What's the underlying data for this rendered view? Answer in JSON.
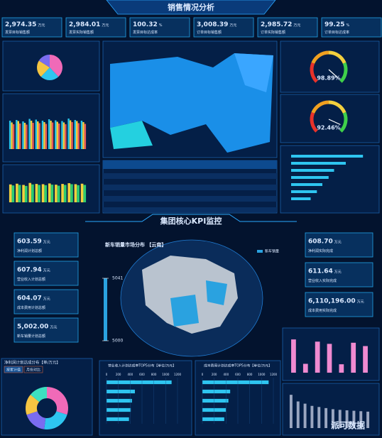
{
  "header": {
    "title": "销售情况分析"
  },
  "kpis": [
    {
      "value": "2,974.35",
      "unit": "万元",
      "label": "发票目标销售额"
    },
    {
      "value": "2,984.01",
      "unit": "万元",
      "label": "发票实际销售额"
    },
    {
      "value": "100.32",
      "unit": "%",
      "label": "发票目标达成率"
    },
    {
      "value": "3,008.39",
      "unit": "万元",
      "label": "订单目标销售额"
    },
    {
      "value": "2,985.72",
      "unit": "万元",
      "label": "订单实际销售额"
    },
    {
      "value": "99.25",
      "unit": "%",
      "label": "订单目标达成率"
    }
  ],
  "gauges": [
    {
      "value": 98.89,
      "label": "98.89%"
    },
    {
      "value": 92.46,
      "label": "92.46%"
    }
  ],
  "pie": {
    "type": "pie",
    "values": [
      38,
      24,
      22,
      16
    ],
    "colors": [
      "#f06ab8",
      "#2ec5f0",
      "#f5c542",
      "#7a6cf0"
    ]
  },
  "bars": {
    "type": "bar",
    "ylim": [
      0,
      100
    ],
    "series": [
      {
        "color": "#27c4e8",
        "values": [
          80,
          82,
          78,
          85,
          83,
          80,
          84,
          81,
          79,
          86,
          82,
          80
        ]
      },
      {
        "color": "#f3d03e",
        "values": [
          75,
          79,
          74,
          80,
          78,
          76,
          80,
          77,
          75,
          81,
          79,
          76
        ]
      },
      {
        "color": "#e85a5a",
        "values": [
          70,
          72,
          69,
          74,
          73,
          71,
          75,
          72,
          70,
          76,
          73,
          71
        ]
      }
    ]
  },
  "bars2": {
    "type": "bar",
    "ylim": [
      0,
      100
    ],
    "series": [
      {
        "color": "#f3d03e",
        "values": [
          72,
          75,
          70,
          78,
          74,
          73,
          76,
          71,
          74,
          77,
          73,
          75
        ]
      },
      {
        "color": "#2ecc71",
        "values": [
          68,
          70,
          66,
          72,
          70,
          69,
          71,
          67,
          70,
          73,
          69,
          70
        ]
      }
    ]
  },
  "hbar_right": {
    "type": "hbar",
    "xlim": [
      0,
      100
    ],
    "color": "#2ec5f0",
    "values": [
      92,
      70,
      55,
      48,
      40,
      33,
      25
    ]
  },
  "section": {
    "title": "集团核心KPI监控"
  },
  "kpi_left": [
    {
      "value": "603.59",
      "unit": "万元",
      "label": "净利润计划总额"
    },
    {
      "value": "607.94",
      "unit": "万元",
      "label": "营业收入计划总额"
    },
    {
      "value": "604.07",
      "unit": "万元",
      "label": "成本费用计划总额"
    },
    {
      "value": "5,002.00",
      "unit": "万元",
      "label": "新车销量计划总额"
    }
  ],
  "kpi_right": [
    {
      "value": "608.70",
      "unit": "万元",
      "label": "净利润实际完成"
    },
    {
      "value": "611.64",
      "unit": "万元",
      "label": "营业收入实际完成"
    },
    {
      "value": "6,110,196.00",
      "unit": "万元",
      "label": "成本费用实际完成"
    }
  ],
  "map": {
    "title": "新车销量市场分布 【云南】",
    "legend": "新车销量",
    "scale": [
      5000,
      5041
    ]
  },
  "donut": {
    "type": "pie",
    "title": "净利润计划达成分布【单/万元】",
    "tabs": [
      "按累计值",
      "月份对比"
    ],
    "values": [
      30,
      22,
      18,
      16,
      14
    ],
    "colors": [
      "#f06ab8",
      "#2ec5f0",
      "#7a6cf0",
      "#f5c542",
      "#3de0c0"
    ]
  },
  "hbars": [
    {
      "type": "hbar",
      "title": "营业收入计划达成率TOP5分布【单位/万元】",
      "xlim": [
        0,
        1200
      ],
      "xticks": [
        0,
        200,
        400,
        600,
        800,
        1000,
        1200
      ],
      "color": "#2ec5f0",
      "values": [
        1100,
        480,
        430,
        410,
        380
      ]
    },
    {
      "type": "hbar",
      "title": "成本费用计划达成率TOP5分布【单位/万元】",
      "xlim": [
        0,
        1200
      ],
      "xticks": [
        0,
        200,
        400,
        600,
        800,
        1000,
        1200
      ],
      "color": "#2ec5f0",
      "values": [
        1120,
        470,
        440,
        400,
        370
      ]
    }
  ],
  "combo": [
    {
      "type": "bar",
      "ylim": [
        0,
        1600
      ],
      "color": "#f08ad0",
      "values": [
        1500,
        400,
        1400,
        1300,
        380,
        1350,
        1200
      ]
    },
    {
      "type": "bar",
      "ylim": [
        0,
        1600
      ],
      "color": "#9aa6c0",
      "values": [
        1500,
        1200,
        1100,
        1000,
        950,
        900,
        850,
        820,
        800,
        780,
        760,
        740
      ]
    }
  ],
  "watermark": "派可数据"
}
